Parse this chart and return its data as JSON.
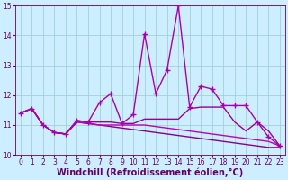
{
  "xlabel": "Windchill (Refroidissement éolien,°C)",
  "hours": [
    0,
    1,
    2,
    3,
    4,
    5,
    6,
    7,
    8,
    9,
    10,
    11,
    12,
    13,
    14,
    15,
    16,
    17,
    18,
    19,
    20,
    21,
    22,
    23
  ],
  "series": [
    {
      "values": [
        11.4,
        11.55,
        11.0,
        10.75,
        10.7,
        11.15,
        11.1,
        11.75,
        12.05,
        11.05,
        11.35,
        14.05,
        12.05,
        12.85,
        15.0,
        11.6,
        12.3,
        12.2,
        11.65,
        11.65,
        11.65,
        11.1,
        10.6,
        10.3
      ],
      "color": "#aa00aa",
      "marker": true,
      "zorder": 5
    },
    {
      "values": [
        11.4,
        11.55,
        11.0,
        10.75,
        10.7,
        11.15,
        11.1,
        11.1,
        11.1,
        11.05,
        11.05,
        11.2,
        11.2,
        11.2,
        11.2,
        11.55,
        11.6,
        11.6,
        11.6,
        11.1,
        10.8,
        11.1,
        10.8,
        10.3
      ],
      "color": "#990099",
      "marker": false,
      "zorder": 3
    },
    {
      "values": [
        11.4,
        11.55,
        11.0,
        10.75,
        10.7,
        11.1,
        11.05,
        11.0,
        10.95,
        10.9,
        10.85,
        10.8,
        10.75,
        10.7,
        10.65,
        10.6,
        10.55,
        10.5,
        10.45,
        10.4,
        10.35,
        10.3,
        10.25,
        10.25
      ],
      "color": "#880088",
      "marker": false,
      "zorder": 2
    },
    {
      "values": [
        11.4,
        11.55,
        11.0,
        10.75,
        10.7,
        11.1,
        11.05,
        11.0,
        11.0,
        11.0,
        11.0,
        11.0,
        10.95,
        10.9,
        10.85,
        10.8,
        10.75,
        10.7,
        10.65,
        10.6,
        10.55,
        10.5,
        10.45,
        10.3
      ],
      "color": "#bb00bb",
      "marker": false,
      "zorder": 2
    }
  ],
  "bg_color": "#cceeff",
  "grid_color": "#99cccc",
  "axis_color": "#660066",
  "ylim": [
    10,
    15
  ],
  "yticks": [
    10,
    11,
    12,
    13,
    14,
    15
  ],
  "xticks": [
    0,
    1,
    2,
    3,
    4,
    5,
    6,
    7,
    8,
    9,
    10,
    11,
    12,
    13,
    14,
    15,
    16,
    17,
    18,
    19,
    20,
    21,
    22,
    23
  ],
  "tick_fontsize": 5.5,
  "label_fontsize": 7,
  "linewidth": 1.0,
  "markersize": 4
}
